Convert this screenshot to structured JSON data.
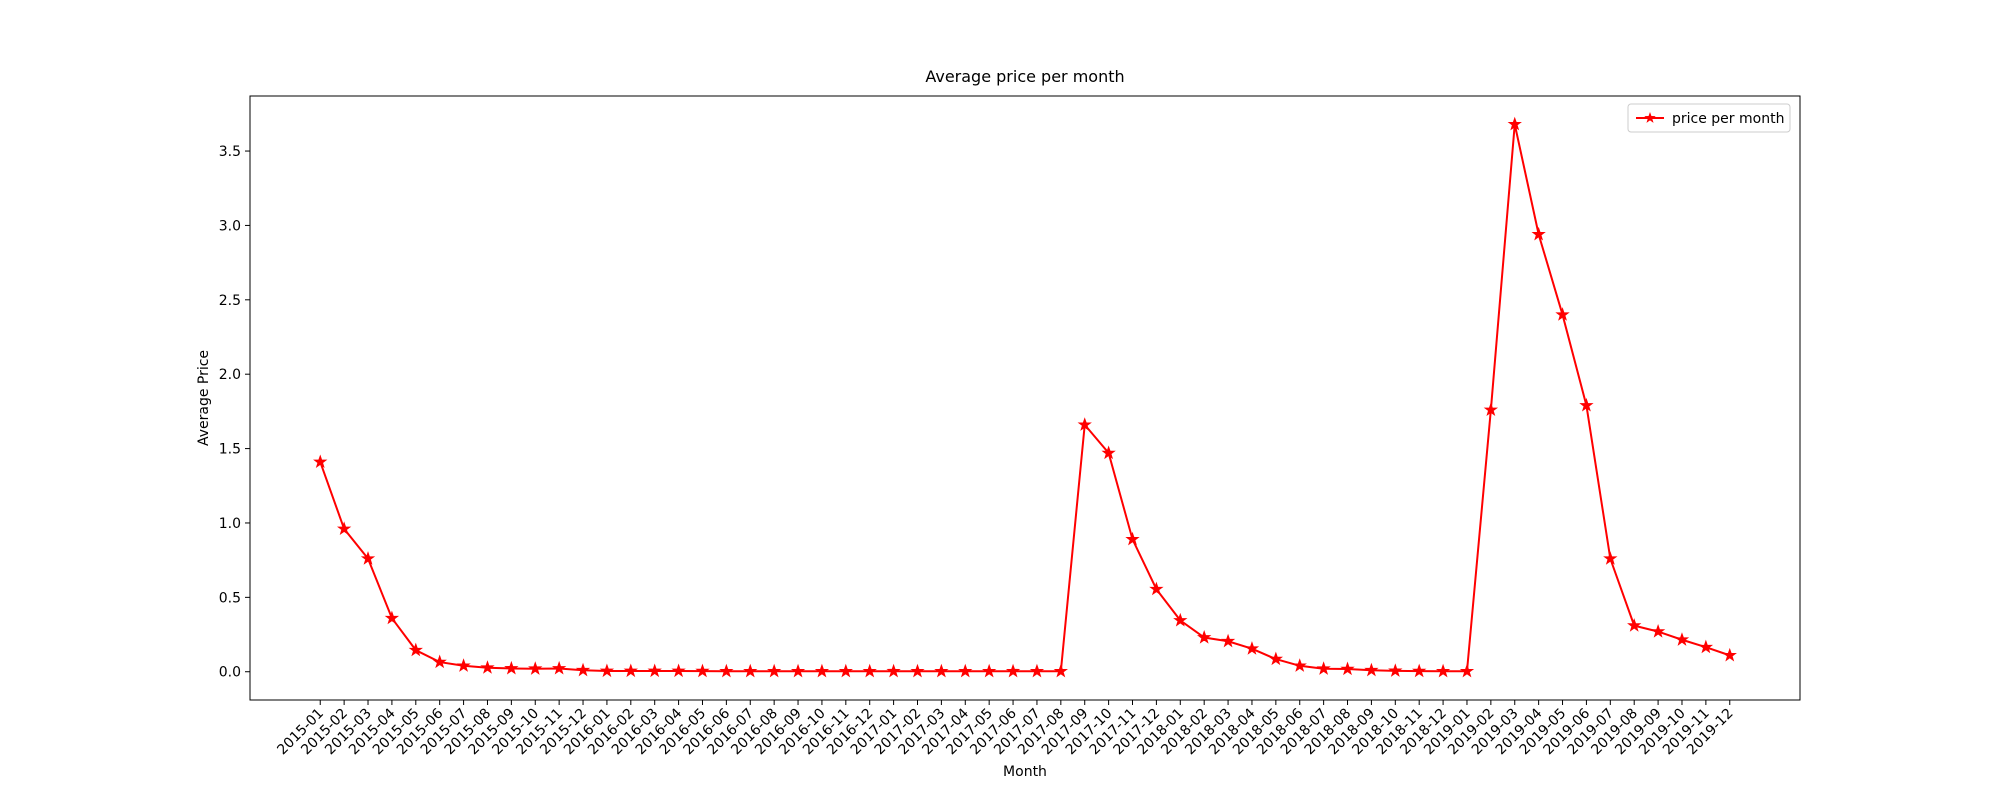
{
  "chart_data": {
    "type": "line",
    "title": "Average price per month",
    "xlabel": "Month",
    "ylabel": "Average Price",
    "categories": [
      "2015-01",
      "2015-02",
      "2015-03",
      "2015-04",
      "2015-05",
      "2015-06",
      "2015-07",
      "2015-08",
      "2015-09",
      "2015-10",
      "2015-11",
      "2015-12",
      "2016-01",
      "2016-02",
      "2016-03",
      "2016-04",
      "2016-05",
      "2016-06",
      "2016-07",
      "2016-08",
      "2016-09",
      "2016-10",
      "2016-11",
      "2016-12",
      "2017-01",
      "2017-02",
      "2017-03",
      "2017-04",
      "2017-05",
      "2017-06",
      "2017-07",
      "2017-08",
      "2017-09",
      "2017-10",
      "2017-11",
      "2017-12",
      "2018-01",
      "2018-02",
      "2018-03",
      "2018-04",
      "2018-05",
      "2018-06",
      "2018-07",
      "2018-08",
      "2018-09",
      "2018-10",
      "2018-11",
      "2018-12",
      "2019-01",
      "2019-02",
      "2019-03",
      "2019-04",
      "2019-05",
      "2019-06",
      "2019-07",
      "2019-08",
      "2019-09",
      "2019-10",
      "2019-11",
      "2019-12"
    ],
    "series": [
      {
        "name": "price per month",
        "color": "#ff0000",
        "marker": "star",
        "values": [
          1.41,
          0.96,
          0.76,
          0.36,
          0.145,
          0.065,
          0.04,
          0.027,
          0.022,
          0.02,
          0.022,
          0.01,
          0.005,
          0.005,
          0.005,
          0.005,
          0.004,
          0.003,
          0.003,
          0.003,
          0.003,
          0.003,
          0.003,
          0.003,
          0.003,
          0.003,
          0.003,
          0.003,
          0.003,
          0.003,
          0.003,
          0.003,
          1.66,
          1.47,
          0.89,
          0.555,
          0.345,
          0.23,
          0.205,
          0.155,
          0.085,
          0.04,
          0.02,
          0.018,
          0.01,
          0.006,
          0.004,
          0.003,
          0.003,
          1.76,
          3.68,
          2.94,
          2.4,
          1.79,
          0.76,
          0.31,
          0.27,
          0.215,
          0.165,
          0.11
        ]
      }
    ],
    "ylim": [
      -0.19,
      3.87
    ],
    "yticks": [
      {
        "value": 0,
        "label": "0.0"
      },
      0.5,
      {
        "value": 1,
        "label": "1.0"
      },
      1.5,
      {
        "value": 2,
        "label": "2.0"
      },
      2.5,
      {
        "value": 3,
        "label": "3.0"
      },
      3.5
    ],
    "grid": false,
    "legend": "upper right"
  }
}
